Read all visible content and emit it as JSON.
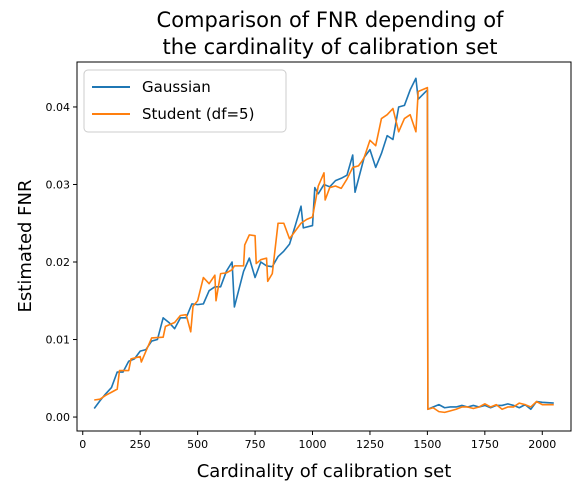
{
  "chart_data": {
    "type": "line",
    "title_lines": [
      "Comparison of FNR depending of",
      "the cardinality of calibration set"
    ],
    "xlabel": "Cardinality of calibration set",
    "ylabel": "Estimated FNR",
    "xlim": [
      -25,
      2125
    ],
    "ylim": [
      -0.0018,
      0.0458
    ],
    "xticks": [
      0,
      250,
      500,
      750,
      1000,
      1250,
      1500,
      1750,
      2000
    ],
    "yticks": [
      0.0,
      0.01,
      0.02,
      0.03,
      0.04
    ],
    "ytick_labels": [
      "0.00",
      "0.01",
      "0.02",
      "0.03",
      "0.04"
    ],
    "legend_position": "top-left",
    "series": [
      {
        "name": "Gaussian",
        "color": "#1f77b4",
        "points": [
          [
            50,
            0.0011
          ],
          [
            75,
            0.0021
          ],
          [
            100,
            0.003
          ],
          [
            125,
            0.0038
          ],
          [
            150,
            0.0058
          ],
          [
            175,
            0.0058
          ],
          [
            200,
            0.0072
          ],
          [
            225,
            0.0075
          ],
          [
            250,
            0.0085
          ],
          [
            275,
            0.0087
          ],
          [
            300,
            0.0098
          ],
          [
            325,
            0.01
          ],
          [
            350,
            0.0128
          ],
          [
            375,
            0.0122
          ],
          [
            400,
            0.0114
          ],
          [
            425,
            0.0128
          ],
          [
            450,
            0.0128
          ],
          [
            475,
            0.0146
          ],
          [
            500,
            0.0145
          ],
          [
            525,
            0.0146
          ],
          [
            550,
            0.0163
          ],
          [
            575,
            0.0168
          ],
          [
            600,
            0.0168
          ],
          [
            625,
            0.0188
          ],
          [
            650,
            0.02
          ],
          [
            660,
            0.0142
          ],
          [
            700,
            0.0188
          ],
          [
            725,
            0.0205
          ],
          [
            750,
            0.018
          ],
          [
            775,
            0.02
          ],
          [
            800,
            0.0195
          ],
          [
            825,
            0.0194
          ],
          [
            850,
            0.0207
          ],
          [
            875,
            0.0214
          ],
          [
            900,
            0.0223
          ],
          [
            925,
            0.0247
          ],
          [
            950,
            0.0272
          ],
          [
            960,
            0.0244
          ],
          [
            1000,
            0.0247
          ],
          [
            1010,
            0.0296
          ],
          [
            1025,
            0.0288
          ],
          [
            1050,
            0.03
          ],
          [
            1075,
            0.0297
          ],
          [
            1100,
            0.0305
          ],
          [
            1125,
            0.0308
          ],
          [
            1150,
            0.0312
          ],
          [
            1175,
            0.0338
          ],
          [
            1185,
            0.029
          ],
          [
            1225,
            0.0335
          ],
          [
            1250,
            0.0345
          ],
          [
            1275,
            0.0322
          ],
          [
            1300,
            0.034
          ],
          [
            1325,
            0.0363
          ],
          [
            1350,
            0.0358
          ],
          [
            1375,
            0.04
          ],
          [
            1400,
            0.0402
          ],
          [
            1425,
            0.0422
          ],
          [
            1450,
            0.0437
          ],
          [
            1460,
            0.041
          ],
          [
            1500,
            0.0422
          ],
          [
            1502,
            0.001
          ],
          [
            1525,
            0.0013
          ],
          [
            1550,
            0.0016
          ],
          [
            1575,
            0.0012
          ],
          [
            1600,
            0.0013
          ],
          [
            1625,
            0.0013
          ],
          [
            1650,
            0.0015
          ],
          [
            1675,
            0.0013
          ],
          [
            1700,
            0.0015
          ],
          [
            1725,
            0.0013
          ],
          [
            1750,
            0.0015
          ],
          [
            1775,
            0.0012
          ],
          [
            1800,
            0.0015
          ],
          [
            1825,
            0.0015
          ],
          [
            1850,
            0.0017
          ],
          [
            1875,
            0.0015
          ],
          [
            1900,
            0.0012
          ],
          [
            1925,
            0.0016
          ],
          [
            1950,
            0.001
          ],
          [
            1975,
            0.002
          ],
          [
            2000,
            0.0019
          ],
          [
            2050,
            0.0018
          ]
        ]
      },
      {
        "name": "Student (df=5)",
        "color": "#ff7f0e",
        "points": [
          [
            50,
            0.0022
          ],
          [
            75,
            0.0023
          ],
          [
            100,
            0.0028
          ],
          [
            125,
            0.0032
          ],
          [
            150,
            0.0036
          ],
          [
            160,
            0.006
          ],
          [
            200,
            0.006
          ],
          [
            210,
            0.0075
          ],
          [
            250,
            0.0078
          ],
          [
            255,
            0.0071
          ],
          [
            275,
            0.0085
          ],
          [
            300,
            0.0102
          ],
          [
            350,
            0.0103
          ],
          [
            360,
            0.0117
          ],
          [
            400,
            0.0122
          ],
          [
            425,
            0.0131
          ],
          [
            450,
            0.0132
          ],
          [
            470,
            0.011
          ],
          [
            480,
            0.0143
          ],
          [
            500,
            0.015
          ],
          [
            525,
            0.018
          ],
          [
            550,
            0.0172
          ],
          [
            575,
            0.0183
          ],
          [
            580,
            0.015
          ],
          [
            600,
            0.0185
          ],
          [
            625,
            0.0186
          ],
          [
            650,
            0.019
          ],
          [
            660,
            0.0195
          ],
          [
            700,
            0.0195
          ],
          [
            705,
            0.0222
          ],
          [
            725,
            0.0235
          ],
          [
            750,
            0.0234
          ],
          [
            755,
            0.0198
          ],
          [
            775,
            0.0203
          ],
          [
            800,
            0.0205
          ],
          [
            805,
            0.0175
          ],
          [
            825,
            0.0185
          ],
          [
            850,
            0.025
          ],
          [
            875,
            0.025
          ],
          [
            900,
            0.023
          ],
          [
            925,
            0.024
          ],
          [
            950,
            0.025
          ],
          [
            975,
            0.0255
          ],
          [
            1000,
            0.0258
          ],
          [
            1025,
            0.0298
          ],
          [
            1050,
            0.0315
          ],
          [
            1055,
            0.028
          ],
          [
            1075,
            0.0296
          ],
          [
            1100,
            0.0298
          ],
          [
            1125,
            0.0295
          ],
          [
            1150,
            0.0307
          ],
          [
            1175,
            0.0322
          ],
          [
            1200,
            0.0324
          ],
          [
            1215,
            0.033
          ],
          [
            1225,
            0.0335
          ],
          [
            1250,
            0.0357
          ],
          [
            1275,
            0.035
          ],
          [
            1300,
            0.0385
          ],
          [
            1325,
            0.039
          ],
          [
            1350,
            0.0398
          ],
          [
            1375,
            0.0368
          ],
          [
            1400,
            0.0385
          ],
          [
            1425,
            0.039
          ],
          [
            1450,
            0.0368
          ],
          [
            1460,
            0.042
          ],
          [
            1500,
            0.0425
          ],
          [
            1502,
            0.001
          ],
          [
            1525,
            0.0012
          ],
          [
            1550,
            0.0007
          ],
          [
            1575,
            0.0006
          ],
          [
            1600,
            0.0008
          ],
          [
            1625,
            0.001
          ],
          [
            1650,
            0.0013
          ],
          [
            1675,
            0.0013
          ],
          [
            1700,
            0.0011
          ],
          [
            1725,
            0.0013
          ],
          [
            1750,
            0.0017
          ],
          [
            1775,
            0.0013
          ],
          [
            1800,
            0.0016
          ],
          [
            1825,
            0.001
          ],
          [
            1850,
            0.0013
          ],
          [
            1875,
            0.0013
          ],
          [
            1900,
            0.0018
          ],
          [
            1925,
            0.0016
          ],
          [
            1950,
            0.0013
          ],
          [
            1975,
            0.002
          ],
          [
            2000,
            0.0016
          ],
          [
            2050,
            0.0016
          ]
        ]
      }
    ]
  }
}
